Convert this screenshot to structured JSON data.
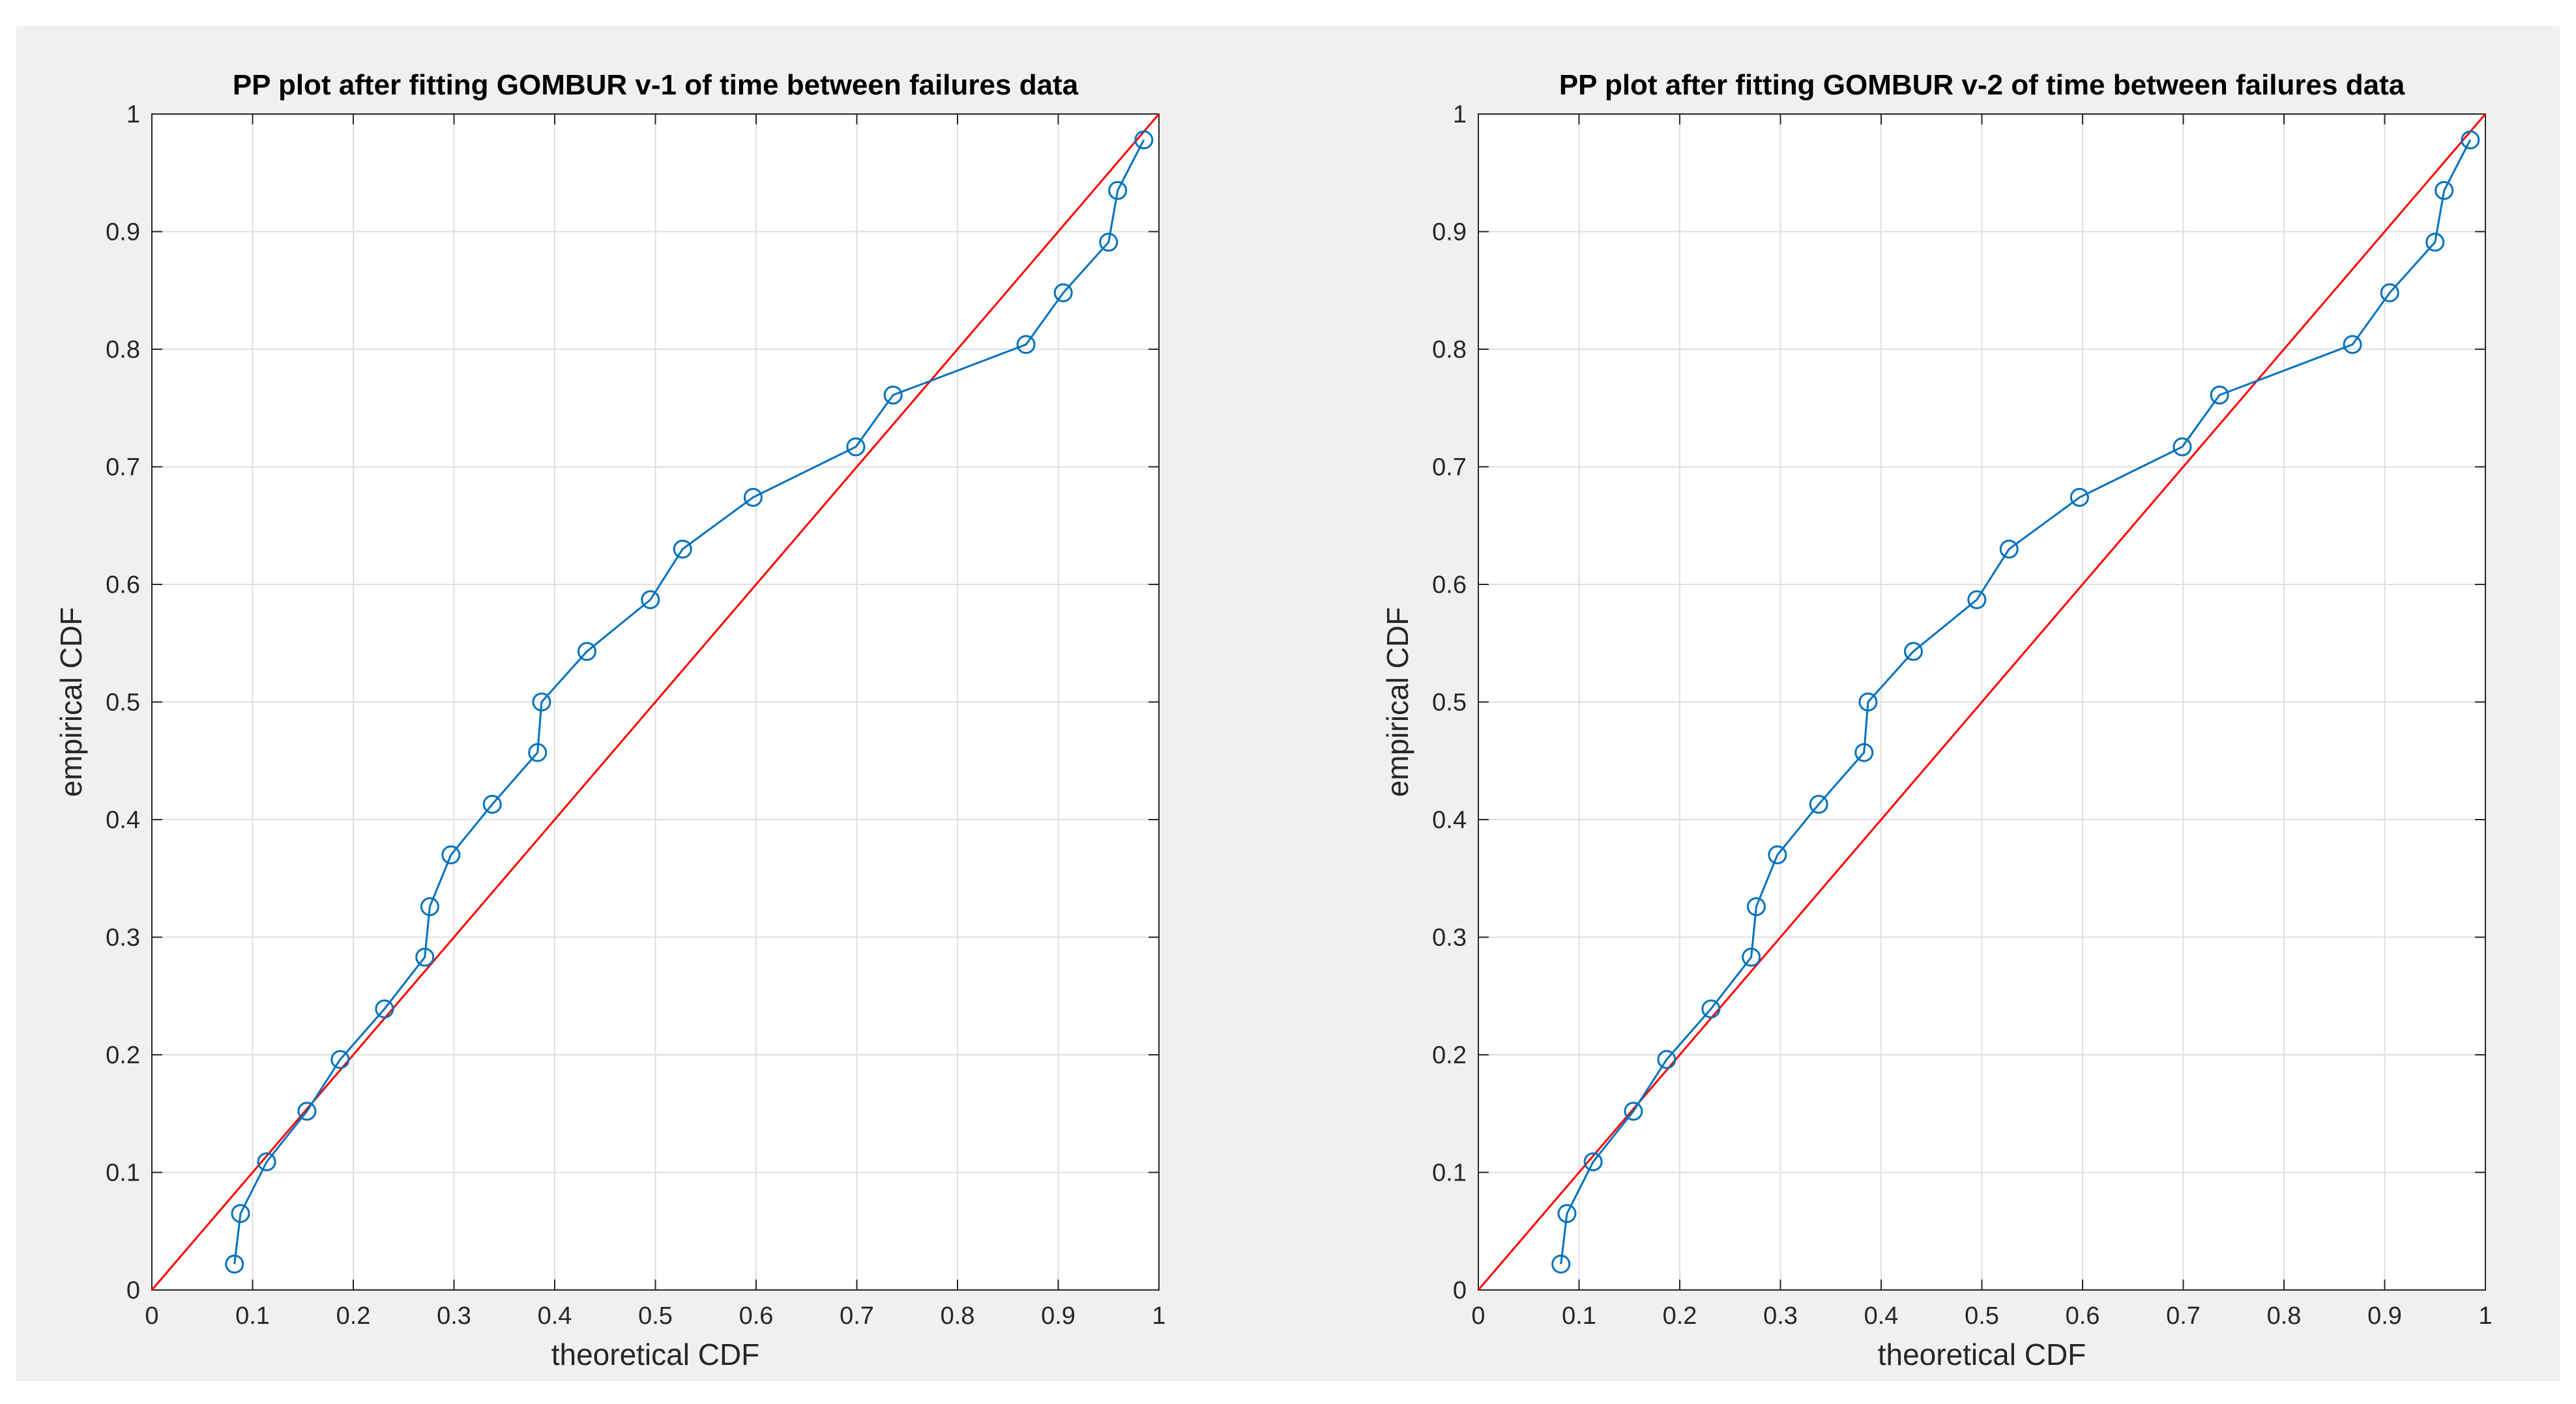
{
  "colors": {
    "figure_background": "#f0f0f0",
    "axes_background": "#ffffff",
    "grid": "#dfdfdf",
    "axis": "#262626",
    "reference_line": "#ff0000",
    "data_series": "#0072bd"
  },
  "chart_data": [
    {
      "type": "line",
      "title": "PP plot after fitting GOMBUR v-1 of time between failures data",
      "xlabel": "theoretical CDF",
      "ylabel": "empirical CDF",
      "xlim": [
        0,
        1
      ],
      "ylim": [
        0,
        1
      ],
      "xticks": [
        "0",
        "0.1",
        "0.2",
        "0.3",
        "0.4",
        "0.5",
        "0.6",
        "0.7",
        "0.8",
        "0.9",
        "1"
      ],
      "yticks": [
        "0",
        "0.1",
        "0.2",
        "0.3",
        "0.4",
        "0.5",
        "0.6",
        "0.7",
        "0.8",
        "0.9",
        "1"
      ],
      "grid": true,
      "legend": "none",
      "reference_line": {
        "x": [
          0,
          1
        ],
        "y": [
          0,
          1
        ],
        "color": "#ff0000"
      },
      "series": [
        {
          "marker": "circle",
          "color": "#0072bd",
          "x": [
            0.082,
            0.088,
            0.114,
            0.154,
            0.187,
            0.231,
            0.271,
            0.276,
            0.297,
            0.338,
            0.383,
            0.387,
            0.432,
            0.495,
            0.527,
            0.597,
            0.699,
            0.736,
            0.868,
            0.905,
            0.95,
            0.959,
            0.985
          ],
          "y": [
            0.022,
            0.065,
            0.109,
            0.152,
            0.196,
            0.239,
            0.283,
            0.326,
            0.37,
            0.413,
            0.457,
            0.5,
            0.543,
            0.587,
            0.63,
            0.674,
            0.717,
            0.761,
            0.804,
            0.848,
            0.891,
            0.935,
            0.978
          ]
        }
      ]
    },
    {
      "type": "line",
      "title": "PP plot after fitting GOMBUR v-2 of time between failures data",
      "xlabel": "theoretical CDF",
      "ylabel": "empirical CDF",
      "xlim": [
        0,
        1
      ],
      "ylim": [
        0,
        1
      ],
      "xticks": [
        "0",
        "0.1",
        "0.2",
        "0.3",
        "0.4",
        "0.5",
        "0.6",
        "0.7",
        "0.8",
        "0.9",
        "1"
      ],
      "yticks": [
        "0",
        "0.1",
        "0.2",
        "0.3",
        "0.4",
        "0.5",
        "0.6",
        "0.7",
        "0.8",
        "0.9",
        "1"
      ],
      "grid": true,
      "legend": "none",
      "reference_line": {
        "x": [
          0,
          1
        ],
        "y": [
          0,
          1
        ],
        "color": "#ff0000"
      },
      "series": [
        {
          "marker": "circle",
          "color": "#0072bd",
          "x": [
            0.082,
            0.088,
            0.114,
            0.154,
            0.187,
            0.231,
            0.271,
            0.276,
            0.297,
            0.338,
            0.383,
            0.387,
            0.432,
            0.495,
            0.527,
            0.597,
            0.699,
            0.736,
            0.868,
            0.905,
            0.95,
            0.959,
            0.985
          ],
          "y": [
            0.022,
            0.065,
            0.109,
            0.152,
            0.196,
            0.239,
            0.283,
            0.326,
            0.37,
            0.413,
            0.457,
            0.5,
            0.543,
            0.587,
            0.63,
            0.674,
            0.717,
            0.761,
            0.804,
            0.848,
            0.891,
            0.935,
            0.978
          ]
        }
      ]
    }
  ]
}
